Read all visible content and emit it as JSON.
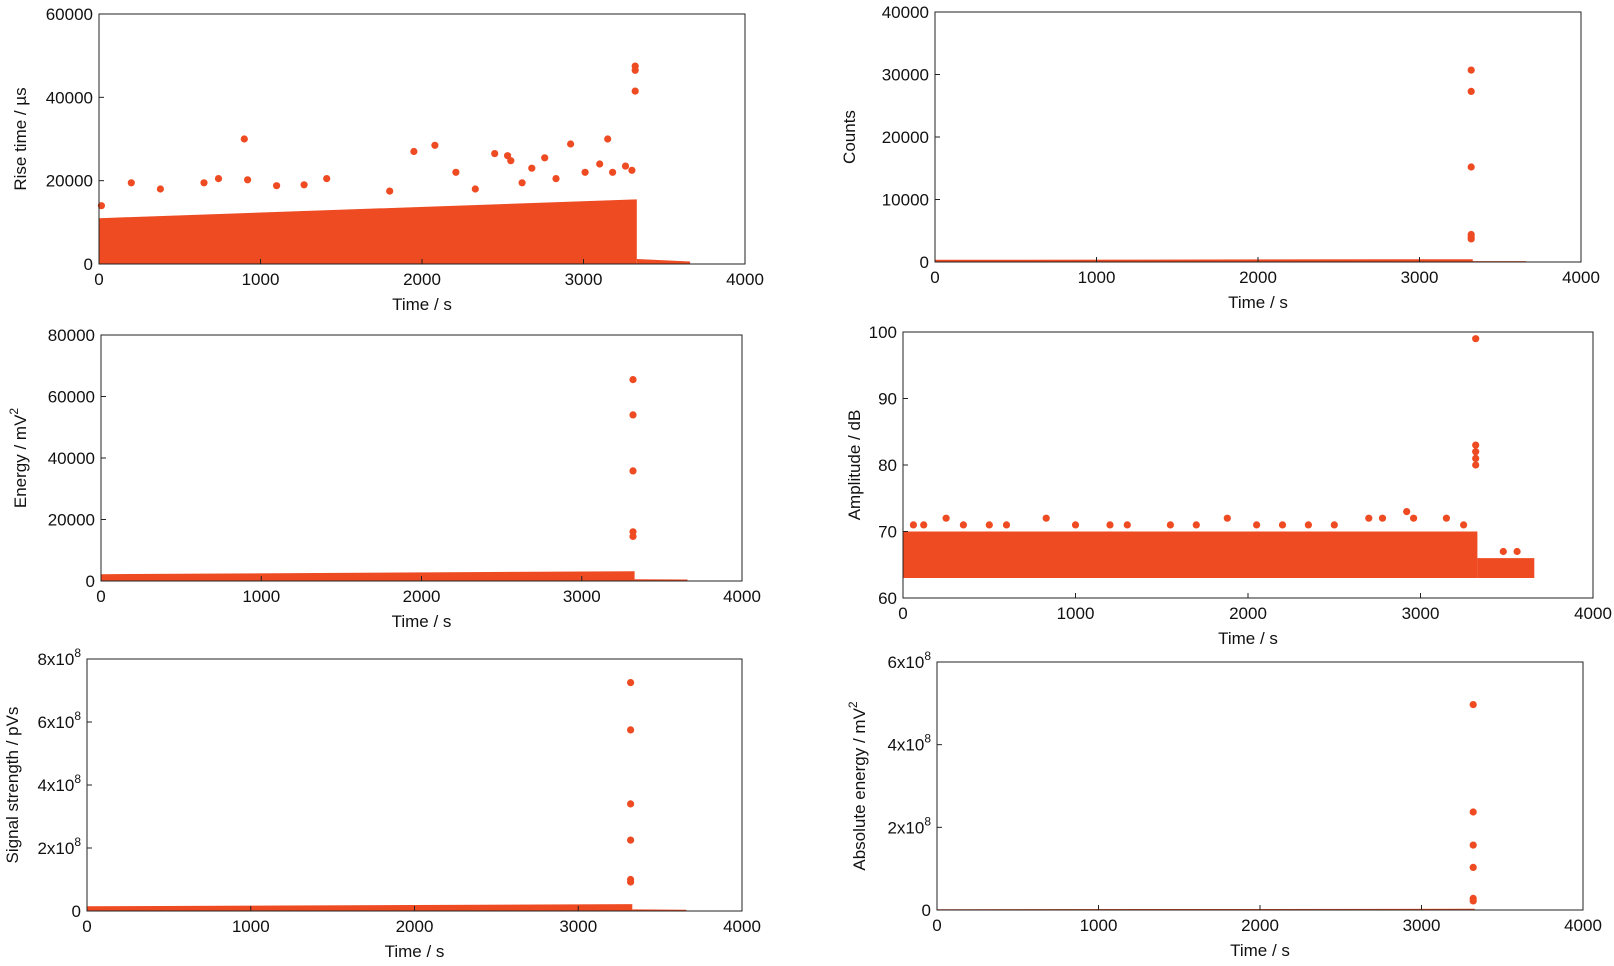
{
  "marker_color": "#ee4b23",
  "chart_data": [
    {
      "type": "scatter",
      "xlabel": "Time / s",
      "ylabel": "Rise time / µs",
      "xlim": [
        0,
        4000
      ],
      "ylim": [
        0,
        60000
      ],
      "xticks": [
        "0",
        "1000",
        "2000",
        "3000",
        "4000"
      ],
      "yticks": [
        "0",
        "20000",
        "40000",
        "60000"
      ],
      "bands": [
        {
          "x": [
            0,
            3330
          ],
          "y_low": [
            0,
            0
          ],
          "y_high": [
            11000,
            15500
          ]
        },
        {
          "x": [
            3330,
            3660
          ],
          "y_low": [
            0,
            0
          ],
          "y_high": [
            1200,
            600
          ]
        }
      ],
      "points": [
        [
          15,
          14000
        ],
        [
          200,
          19500
        ],
        [
          380,
          18000
        ],
        [
          650,
          19500
        ],
        [
          740,
          20500
        ],
        [
          900,
          30000
        ],
        [
          920,
          20200
        ],
        [
          1100,
          18800
        ],
        [
          1270,
          19000
        ],
        [
          1410,
          20500
        ],
        [
          1800,
          17500
        ],
        [
          1950,
          27000
        ],
        [
          2080,
          28500
        ],
        [
          2210,
          22000
        ],
        [
          2330,
          18000
        ],
        [
          2450,
          26500
        ],
        [
          2530,
          26000
        ],
        [
          2550,
          24800
        ],
        [
          2620,
          19500
        ],
        [
          2680,
          23000
        ],
        [
          2760,
          25500
        ],
        [
          2830,
          20500
        ],
        [
          2920,
          28800
        ],
        [
          3010,
          22000
        ],
        [
          3100,
          24000
        ],
        [
          3150,
          30000
        ],
        [
          3180,
          22000
        ],
        [
          3260,
          23500
        ],
        [
          3300,
          22500
        ],
        [
          3320,
          47500
        ],
        [
          3320,
          46500
        ],
        [
          3320,
          41500
        ]
      ]
    },
    {
      "type": "scatter",
      "xlabel": "Time / s",
      "ylabel": "Counts",
      "xlim": [
        0,
        4000
      ],
      "ylim": [
        0,
        40000
      ],
      "xticks": [
        "0",
        "1000",
        "2000",
        "3000",
        "4000"
      ],
      "yticks": [
        "0",
        "10000",
        "20000",
        "30000",
        "40000"
      ],
      "bands": [
        {
          "x": [
            0,
            3330
          ],
          "y_low": [
            0,
            0
          ],
          "y_high": [
            350,
            450
          ]
        },
        {
          "x": [
            3330,
            3660
          ],
          "y_low": [
            0,
            0
          ],
          "y_high": [
            150,
            150
          ]
        }
      ],
      "points": [
        [
          3320,
          30700
        ],
        [
          3320,
          27300
        ],
        [
          3320,
          15200
        ],
        [
          3320,
          4400
        ],
        [
          3320,
          4000
        ],
        [
          3320,
          3700
        ]
      ]
    },
    {
      "type": "scatter",
      "xlabel": "Time / s",
      "ylabel": "Energy / mV",
      "ylabel_sup": "2",
      "xlim": [
        0,
        4000
      ],
      "ylim": [
        0,
        80000
      ],
      "xticks": [
        "0",
        "1000",
        "2000",
        "3000",
        "4000"
      ],
      "yticks": [
        "0",
        "20000",
        "40000",
        "60000",
        "80000"
      ],
      "bands": [
        {
          "x": [
            0,
            3330
          ],
          "y_low": [
            0,
            0
          ],
          "y_high": [
            2200,
            3200
          ]
        },
        {
          "x": [
            3330,
            3660
          ],
          "y_low": [
            0,
            0
          ],
          "y_high": [
            600,
            500
          ]
        }
      ],
      "points": [
        [
          3320,
          65500
        ],
        [
          3320,
          54000
        ],
        [
          3320,
          35800
        ],
        [
          3320,
          16000
        ],
        [
          3320,
          14500
        ]
      ]
    },
    {
      "type": "scatter",
      "xlabel": "Time / s",
      "ylabel": "Amplitude / dB",
      "xlim": [
        0,
        4000
      ],
      "ylim": [
        60,
        100
      ],
      "xticks": [
        "0",
        "1000",
        "2000",
        "3000",
        "4000"
      ],
      "yticks": [
        "60",
        "70",
        "80",
        "90",
        "100"
      ],
      "bands": [
        {
          "x": [
            0,
            3330
          ],
          "y_low": [
            63,
            63
          ],
          "y_high": [
            70,
            70
          ]
        },
        {
          "x": [
            3330,
            3660
          ],
          "y_low": [
            63,
            63
          ],
          "y_high": [
            66,
            66
          ]
        }
      ],
      "points": [
        [
          60,
          71
        ],
        [
          120,
          71
        ],
        [
          250,
          72
        ],
        [
          350,
          71
        ],
        [
          500,
          71
        ],
        [
          600,
          71
        ],
        [
          830,
          72
        ],
        [
          1000,
          71
        ],
        [
          1200,
          71
        ],
        [
          1300,
          71
        ],
        [
          1550,
          71
        ],
        [
          1700,
          71
        ],
        [
          1880,
          72
        ],
        [
          2050,
          71
        ],
        [
          2200,
          71
        ],
        [
          2350,
          71
        ],
        [
          2500,
          71
        ],
        [
          2700,
          72
        ],
        [
          2780,
          72
        ],
        [
          2920,
          73
        ],
        [
          2960,
          72
        ],
        [
          3150,
          72
        ],
        [
          3250,
          71
        ],
        [
          3320,
          99
        ],
        [
          3320,
          83
        ],
        [
          3320,
          82
        ],
        [
          3320,
          81
        ],
        [
          3320,
          80
        ],
        [
          3480,
          67
        ],
        [
          3560,
          67
        ]
      ]
    },
    {
      "type": "scatter",
      "xlabel": "Time / s",
      "ylabel": "Signal strength / pVs",
      "xlim": [
        0,
        4000
      ],
      "ylim": [
        0,
        800000000
      ],
      "xticks": [
        "0",
        "1000",
        "2000",
        "3000",
        "4000"
      ],
      "yticks": [
        {
          "base": "0",
          "exp": ""
        },
        {
          "base": "2x10",
          "exp": "8"
        },
        {
          "base": "4x10",
          "exp": "8"
        },
        {
          "base": "6x10",
          "exp": "8"
        },
        {
          "base": "8x10",
          "exp": "8"
        }
      ],
      "bands": [
        {
          "x": [
            0,
            3330
          ],
          "y_low": [
            0,
            0
          ],
          "y_high": [
            15000000,
            22000000
          ]
        },
        {
          "x": [
            3330,
            3660
          ],
          "y_low": [
            0,
            0
          ],
          "y_high": [
            5000000,
            4000000
          ]
        }
      ],
      "points": [
        [
          3320,
          725000000
        ],
        [
          3320,
          575000000
        ],
        [
          3320,
          340000000
        ],
        [
          3320,
          225000000
        ],
        [
          3320,
          100000000
        ],
        [
          3320,
          92000000
        ]
      ]
    },
    {
      "type": "scatter",
      "xlabel": "Time / s",
      "ylabel": "Absolute energy / mV",
      "ylabel_sup": "2",
      "xlim": [
        0,
        4000
      ],
      "ylim": [
        0,
        600000000
      ],
      "xticks": [
        "0",
        "1000",
        "2000",
        "3000",
        "4000"
      ],
      "yticks": [
        {
          "base": "0",
          "exp": ""
        },
        {
          "base": "2x10",
          "exp": "8"
        },
        {
          "base": "4x10",
          "exp": "8"
        },
        {
          "base": "6x10",
          "exp": "8"
        }
      ],
      "bands": [
        {
          "x": [
            0,
            3330
          ],
          "y_low": [
            0,
            0
          ],
          "y_high": [
            2000000,
            3000000
          ]
        },
        {
          "x": [
            3330,
            3660
          ],
          "y_low": [
            0,
            0
          ],
          "y_high": [
            1000000,
            1000000
          ]
        }
      ],
      "points": [
        [
          3320,
          497000000
        ],
        [
          3320,
          237000000
        ],
        [
          3320,
          157000000
        ],
        [
          3320,
          103000000
        ],
        [
          3320,
          28000000
        ],
        [
          3320,
          22000000
        ]
      ]
    }
  ]
}
